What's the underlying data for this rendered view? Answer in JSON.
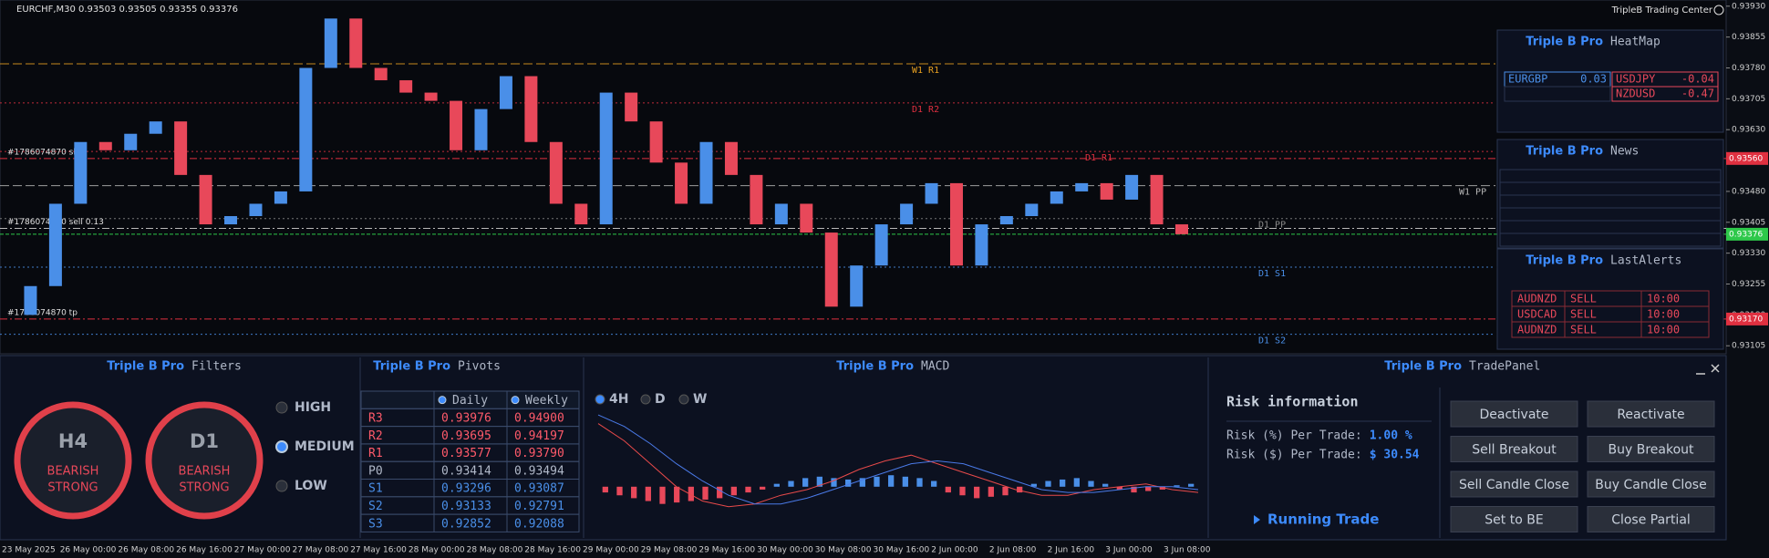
{
  "header": {
    "symbol": "EURCHF,M30",
    "ohlc": "0.93503 0.93505 0.93355 0.93376",
    "brand": "TripleB Trading Center"
  },
  "price_chart": {
    "ylim": [
      0.9309,
      0.93945
    ],
    "yticks": [
      {
        "value": 0.9393,
        "label": "0.93930"
      },
      {
        "value": 0.93855,
        "label": "0.93855"
      },
      {
        "value": 0.9378,
        "label": "0.93780"
      },
      {
        "value": 0.93705,
        "label": "0.93705"
      },
      {
        "value": 0.9363,
        "label": "0.93630"
      },
      {
        "value": 0.93555,
        "label": "0.93555"
      },
      {
        "value": 0.9348,
        "label": "0.93480"
      },
      {
        "value": 0.93405,
        "label": "0.93405"
      },
      {
        "value": 0.9333,
        "label": "0.93330"
      },
      {
        "value": 0.93255,
        "label": "0.93255"
      },
      {
        "value": 0.9318,
        "label": "0.93180"
      },
      {
        "value": 0.93105,
        "label": "0.93105"
      }
    ],
    "dates": [
      "23 May 2025",
      "26 May 00:00",
      "26 May 08:00",
      "26 May 16:00",
      "27 May 00:00",
      "27 May 08:00",
      "27 May 16:00",
      "28 May 00:00",
      "28 May 08:00",
      "28 May 16:00",
      "29 May 00:00",
      "29 May 08:00",
      "29 May 16:00",
      "30 May 00:00",
      "30 May 08:00",
      "30 May 16:00",
      "2 Jun 00:00",
      "2 Jun 08:00",
      "2 Jun 16:00",
      "3 Jun 00:00",
      "3 Jun 08:00"
    ],
    "closes": [
      0.9318,
      0.9325,
      0.9345,
      0.936,
      0.9358,
      0.9362,
      0.9365,
      0.9352,
      0.934,
      0.9342,
      0.9345,
      0.9348,
      0.9378,
      0.939,
      0.9378,
      0.9375,
      0.9372,
      0.937,
      0.9358,
      0.9368,
      0.9376,
      0.936,
      0.9345,
      0.934,
      0.9372,
      0.9365,
      0.9355,
      0.9345,
      0.936,
      0.9352,
      0.934,
      0.9345,
      0.9338,
      0.932,
      0.933,
      0.934,
      0.9345,
      0.935,
      0.933,
      0.934,
      0.9342,
      0.9345,
      0.9348,
      0.935,
      0.9346,
      0.9352,
      0.934,
      0.93376
    ],
    "up_color": "#4a8fe8",
    "down_color": "#e8485a",
    "levels": [
      {
        "name": "W1 R1",
        "value": 0.9379,
        "color": "#e8a020"
      },
      {
        "name": "D1 R2",
        "value": 0.93695,
        "color": "#e03040"
      },
      {
        "name": "D1 R1",
        "value": 0.93577,
        "color": "#e03040"
      },
      {
        "name": "W1 PP",
        "value": 0.93494,
        "color": "#b8b8b8"
      },
      {
        "name": "D1 PP",
        "value": 0.93414,
        "color": "#8a8a8a"
      },
      {
        "name": "D1 S1",
        "value": 0.93296,
        "color": "#4a8fe8"
      },
      {
        "name": "D1 S2",
        "value": 0.93133,
        "color": "#4a8fe8"
      }
    ],
    "orders": [
      {
        "name": "#1786074870 sl",
        "value": 0.9356,
        "axis_label": "0.93560",
        "color": "#e03040"
      },
      {
        "name": "#1786074870 sell 0.13",
        "value": 0.9339,
        "color": "#b8b8b8"
      },
      {
        "name": "#1786074870 tp",
        "value": 0.9317,
        "axis_label": "0.93170",
        "color": "#e03040"
      }
    ],
    "current": {
      "value": 0.93376,
      "label": "0.93376",
      "color": "#2ec84a"
    }
  },
  "heatmap": {
    "brand": "Triple B Pro",
    "title": "HeatMap",
    "cells": [
      {
        "pair": "EURGBP",
        "value": "0.03"
      },
      {
        "pair": "USDJPY",
        "value": "-0.04"
      },
      {
        "pair": "NZDUSD",
        "value": "-0.47"
      }
    ]
  },
  "news": {
    "brand": "Triple B Pro",
    "title": "News"
  },
  "alerts": {
    "brand": "Triple B Pro",
    "title": "LastAlerts",
    "rows": [
      [
        "AUDNZD",
        "SELL",
        "10:00"
      ],
      [
        "USDCAD",
        "SELL",
        "10:00"
      ],
      [
        "AUDNZD",
        "SELL",
        "10:00"
      ]
    ]
  },
  "filters": {
    "brand": "Triple B Pro",
    "title": "Filters",
    "gauges": [
      {
        "tf": "H4",
        "state": [
          "BEARISH",
          "STRONG"
        ]
      },
      {
        "tf": "D1",
        "state": [
          "BEARISH",
          "STRONG"
        ]
      }
    ],
    "levels": [
      "HIGH",
      "MEDIUM",
      "LOW"
    ],
    "selected": "MEDIUM"
  },
  "pivots": {
    "brand": "Triple B Pro",
    "title": "Pivots",
    "columns": [
      "Daily",
      "Weekly"
    ],
    "rows": [
      [
        "R3",
        "0.93976",
        "0.94900"
      ],
      [
        "R2",
        "0.93695",
        "0.94197"
      ],
      [
        "R1",
        "0.93577",
        "0.93790"
      ],
      [
        "P0",
        "0.93414",
        "0.93494"
      ],
      [
        "S1",
        "0.93296",
        "0.93087"
      ],
      [
        "S2",
        "0.93133",
        "0.92791"
      ],
      [
        "S3",
        "0.92852",
        "0.92088"
      ]
    ]
  },
  "macd": {
    "brand": "Triple B Pro",
    "title": "MACD",
    "timeframes": [
      "4H",
      "D",
      "W"
    ],
    "selected": "4H",
    "ylim": [
      -1.5,
      2.6
    ],
    "histogram": [
      -0.2,
      -0.3,
      -0.4,
      -0.5,
      -0.6,
      -0.55,
      -0.5,
      -0.45,
      -0.4,
      -0.3,
      -0.2,
      -0.1,
      0.1,
      0.2,
      0.3,
      0.35,
      0.3,
      0.25,
      0.3,
      0.35,
      0.4,
      0.35,
      0.3,
      0.2,
      -0.2,
      -0.3,
      -0.4,
      -0.35,
      -0.3,
      -0.2,
      0.1,
      0.2,
      0.25,
      0.3,
      0.2,
      0.1,
      -0.1,
      -0.2,
      -0.15,
      -0.1,
      0.05,
      0.1
    ],
    "macd": [
      2.2,
      1.6,
      0.8,
      0.0,
      -0.5,
      -0.7,
      -0.6,
      -0.3,
      -0.1,
      0.2,
      0.6,
      0.9,
      1.1,
      0.8,
      0.5,
      0.2,
      -0.1,
      -0.3,
      -0.3,
      -0.1,
      0.0,
      0.1,
      -0.1,
      -0.2
    ],
    "signal": [
      2.5,
      2.1,
      1.5,
      0.8,
      0.2,
      -0.3,
      -0.6,
      -0.6,
      -0.4,
      -0.1,
      0.2,
      0.5,
      0.8,
      0.9,
      0.8,
      0.5,
      0.2,
      -0.1,
      -0.2,
      -0.2,
      -0.1,
      0.0,
      0.0,
      -0.1
    ]
  },
  "trade_panel": {
    "brand": "Triple B Pro",
    "title": "TradePanel",
    "risk_title": "Risk information",
    "risk_rows": [
      {
        "label": "Risk (%) Per Trade:",
        "value": "1.00 %"
      },
      {
        "label": "Risk ($) Per Trade:",
        "value": "$ 30.54"
      }
    ],
    "buttons": [
      "Deactivate",
      "Reactivate",
      "Sell Breakout",
      "Buy Breakout",
      "Sell Candle Close",
      "Buy Candle Close",
      "Set to BE",
      "Close Partial"
    ],
    "running": "Running Trade"
  }
}
